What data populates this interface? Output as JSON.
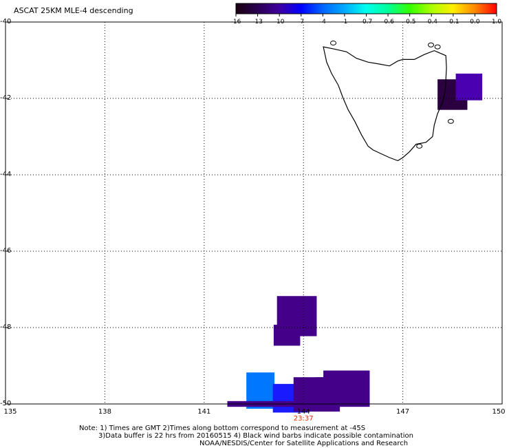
{
  "title": "ASCAT 25KM MLE-4 descending",
  "colorbar": {
    "ticks": [
      "-16",
      "-13",
      "-10",
      "-7",
      "-4",
      "-1",
      "-0.7",
      "-0.6",
      "-0.5",
      "-0.4",
      "-0.1",
      "0.0",
      "1.0"
    ],
    "colors": [
      "#1a0010",
      "#2a0050",
      "#4000a0",
      "#0000ff",
      "#0066ff",
      "#00aaff",
      "#00ffee",
      "#00ff99",
      "#33ff00",
      "#aaff00",
      "#ffee00",
      "#ff8800",
      "#ff0000"
    ]
  },
  "map": {
    "lon_ticks": [
      "135",
      "138",
      "141",
      "144",
      "147",
      "150"
    ],
    "lat_ticks": [
      "-40",
      "-42",
      "-44",
      "-46",
      "-48",
      "-50"
    ],
    "lon_range": [
      135,
      150
    ],
    "lat_range": [
      -50,
      -40
    ],
    "time_label": "23:37",
    "cells": [
      {
        "lon": 148.5,
        "lat": -41.9,
        "w": 0.9,
        "h": 0.8,
        "color": "#2a0040"
      },
      {
        "lon": 149.0,
        "lat": -41.7,
        "w": 0.8,
        "h": 0.7,
        "color": "#4a00b0"
      },
      {
        "lon": 143.8,
        "lat": -47.7,
        "w": 1.2,
        "h": 1.05,
        "color": "#440088"
      },
      {
        "lon": 143.5,
        "lat": -48.2,
        "w": 0.8,
        "h": 0.55,
        "color": "#440088"
      },
      {
        "lon": 142.7,
        "lat": -49.65,
        "w": 0.85,
        "h": 0.95,
        "color": "#0077ff"
      },
      {
        "lon": 143.6,
        "lat": -49.85,
        "w": 1.05,
        "h": 0.75,
        "color": "#1a1aff"
      },
      {
        "lon": 144.4,
        "lat": -49.75,
        "w": 1.4,
        "h": 0.9,
        "color": "#440088"
      },
      {
        "lon": 145.3,
        "lat": -49.6,
        "w": 1.4,
        "h": 0.95,
        "color": "#440088"
      },
      {
        "lon": 144.9,
        "lat": -49.45,
        "w": 1.0,
        "h": 0.3,
        "color": "#440088"
      },
      {
        "lon": 142.7,
        "lat": -50.0,
        "w": 2.0,
        "h": 0.15,
        "color": "#440088"
      }
    ]
  },
  "notes": {
    "line1": "Note: 1) Times are GMT 2)Times along bottom correspond to measurement at -45S",
    "line2": "3)Data buffer is 22 hrs from 20160515 4) Black wind barbs indicate possible contamination",
    "line3": "NOAA/NESDIS/Center for Satellite Applications and Research"
  }
}
